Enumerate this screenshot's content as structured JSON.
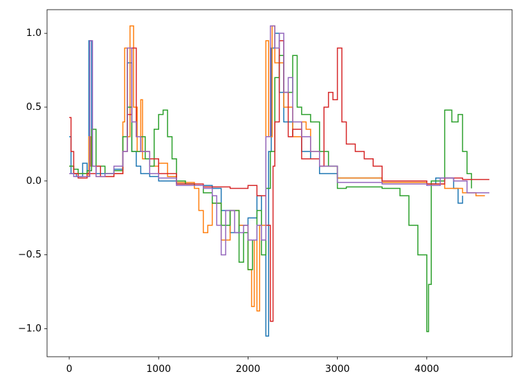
{
  "chart_data": {
    "type": "line",
    "drawstyle": "steps-post",
    "xlim": [
      -248,
      4954
    ],
    "ylim": [
      -1.19,
      1.16
    ],
    "xticks": [
      0,
      1000,
      2000,
      3000,
      4000
    ],
    "yticks": [
      {
        "value": -1.0,
        "label": "−1.0"
      },
      {
        "value": -0.5,
        "label": "−0.5"
      },
      {
        "value": 0.0,
        "label": "0.0"
      },
      0.5,
      {
        "value": 1.0,
        "label": "1.0"
      }
    ],
    "series": [
      {
        "color": "#1f77b4",
        "x": [
          0,
          20,
          80,
          150,
          200,
          220,
          250,
          300,
          400,
          500,
          600,
          650,
          700,
          750,
          800,
          900,
          1000,
          1200,
          1400,
          1600,
          1700,
          1800,
          1900,
          2000,
          2100,
          2150,
          2200,
          2230,
          2260,
          2300,
          2350,
          2400,
          2500,
          2600,
          2700,
          2800,
          3000,
          3500,
          4000,
          4100,
          4300,
          4350,
          4400
        ],
        "values": [
          0.3,
          0.05,
          0.03,
          0.12,
          0.05,
          0.95,
          0.1,
          0.05,
          0.05,
          0.08,
          0.3,
          0.8,
          0.2,
          0.1,
          0.05,
          0.03,
          0.0,
          -0.02,
          -0.03,
          -0.05,
          -0.2,
          -0.35,
          -0.3,
          -0.25,
          -0.1,
          -0.4,
          -1.05,
          0.2,
          0.9,
          1.0,
          0.6,
          0.4,
          0.3,
          0.2,
          0.15,
          0.05,
          0.02,
          0.0,
          -0.02,
          0.02,
          -0.05,
          -0.15,
          -0.1
        ]
      },
      {
        "color": "#ff7f0e",
        "x": [
          0,
          50,
          200,
          220,
          240,
          300,
          500,
          600,
          620,
          650,
          680,
          720,
          760,
          800,
          820,
          900,
          1000,
          1100,
          1200,
          1400,
          1450,
          1500,
          1550,
          1600,
          1700,
          1800,
          1900,
          2000,
          2040,
          2070,
          2100,
          2130,
          2200,
          2230,
          2270,
          2300,
          2400,
          2500,
          2600,
          2650,
          2700,
          2800,
          3000,
          3500,
          4000,
          4200,
          4400,
          4550,
          4650
        ],
        "values": [
          0.1,
          0.05,
          0.03,
          0.3,
          0.1,
          0.03,
          0.05,
          0.4,
          0.9,
          0.3,
          1.05,
          0.5,
          0.2,
          0.55,
          0.15,
          0.1,
          0.12,
          0.03,
          -0.01,
          -0.05,
          -0.2,
          -0.35,
          -0.3,
          -0.15,
          -0.4,
          -0.2,
          -0.3,
          -0.6,
          -0.85,
          -0.4,
          -0.88,
          -0.3,
          0.95,
          0.3,
          1.05,
          0.8,
          0.5,
          0.3,
          0.4,
          0.35,
          0.2,
          0.1,
          0.02,
          -0.01,
          -0.02,
          -0.05,
          -0.08,
          -0.1,
          -0.1
        ]
      },
      {
        "color": "#2ca02c",
        "x": [
          0,
          50,
          100,
          200,
          250,
          300,
          400,
          500,
          600,
          650,
          700,
          800,
          850,
          900,
          950,
          1000,
          1050,
          1100,
          1150,
          1200,
          1300,
          1400,
          1500,
          1600,
          1700,
          1800,
          1900,
          1950,
          2000,
          2050,
          2100,
          2150,
          2200,
          2250,
          2300,
          2350,
          2400,
          2500,
          2550,
          2600,
          2700,
          2800,
          2900,
          3000,
          3100,
          3500,
          3700,
          3800,
          3900,
          4000,
          4020,
          4050,
          4200,
          4280,
          4350,
          4400,
          4450,
          4500
        ],
        "values": [
          0.1,
          0.08,
          0.05,
          0.07,
          0.35,
          0.1,
          0.05,
          0.07,
          0.3,
          0.5,
          0.2,
          0.3,
          0.15,
          0.1,
          0.35,
          0.45,
          0.48,
          0.3,
          0.15,
          0.0,
          -0.02,
          -0.03,
          -0.08,
          -0.15,
          -0.3,
          -0.2,
          -0.55,
          -0.35,
          -0.6,
          -0.4,
          -0.2,
          -0.5,
          -0.05,
          0.2,
          0.7,
          0.85,
          0.6,
          0.85,
          0.5,
          0.45,
          0.4,
          0.2,
          0.1,
          -0.05,
          -0.04,
          -0.05,
          -0.1,
          -0.3,
          -0.5,
          -1.02,
          -0.7,
          0.0,
          0.48,
          0.4,
          0.45,
          0.2,
          0.05,
          -0.05
        ]
      },
      {
        "color": "#d62728",
        "x": [
          0,
          20,
          50,
          100,
          200,
          300,
          350,
          500,
          600,
          650,
          700,
          750,
          800,
          900,
          1000,
          1200,
          1500,
          1800,
          2000,
          2100,
          2200,
          2250,
          2280,
          2300,
          2350,
          2400,
          2450,
          2500,
          2600,
          2800,
          2850,
          2900,
          2950,
          3000,
          3050,
          3100,
          3200,
          3300,
          3400,
          3500,
          4000,
          4200,
          4400,
          4700
        ],
        "values": [
          0.43,
          0.2,
          0.05,
          0.02,
          0.05,
          0.1,
          0.03,
          0.05,
          0.2,
          0.45,
          0.9,
          0.3,
          0.2,
          0.15,
          0.05,
          -0.02,
          -0.04,
          -0.05,
          -0.03,
          -0.1,
          -0.3,
          -0.95,
          0.1,
          0.4,
          0.95,
          0.6,
          0.3,
          0.35,
          0.15,
          0.1,
          0.5,
          0.6,
          0.55,
          0.9,
          0.4,
          0.25,
          0.2,
          0.15,
          0.1,
          0.0,
          -0.02,
          0.02,
          0.01,
          0.01
        ]
      },
      {
        "color": "#9467bd",
        "x": [
          0,
          50,
          200,
          230,
          260,
          300,
          400,
          500,
          600,
          650,
          700,
          750,
          800,
          900,
          1000,
          1200,
          1500,
          1600,
          1650,
          1700,
          1750,
          1850,
          1950,
          2000,
          2100,
          2150,
          2200,
          2250,
          2300,
          2350,
          2400,
          2450,
          2500,
          2600,
          2700,
          2800,
          3000,
          3500,
          4000,
          4150,
          4300,
          4450,
          4700
        ],
        "values": [
          0.05,
          0.03,
          0.03,
          0.95,
          0.1,
          0.03,
          0.05,
          0.1,
          0.2,
          0.9,
          0.4,
          0.3,
          0.2,
          0.05,
          0.02,
          -0.03,
          -0.05,
          -0.1,
          -0.3,
          -0.5,
          -0.2,
          -0.35,
          -0.3,
          -0.4,
          -0.3,
          -0.4,
          0.3,
          1.05,
          0.9,
          1.0,
          0.6,
          0.7,
          0.4,
          0.3,
          0.2,
          0.1,
          -0.01,
          -0.02,
          -0.03,
          0.02,
          0.0,
          -0.08,
          -0.08
        ]
      }
    ]
  }
}
